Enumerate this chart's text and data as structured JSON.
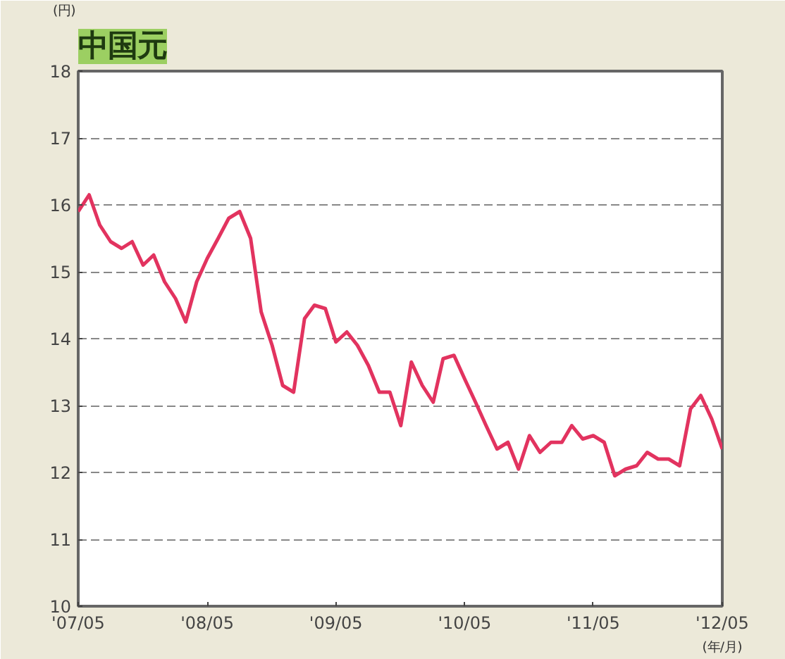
{
  "chart_data": {
    "type": "line",
    "title": "中国元",
    "ylabel": "(円)",
    "xlabel": "(年/月)",
    "x": [
      "2007-05",
      "2007-06",
      "2007-07",
      "2007-08",
      "2007-09",
      "2007-10",
      "2007-11",
      "2007-12",
      "2008-01",
      "2008-02",
      "2008-03",
      "2008-04",
      "2008-05",
      "2008-06",
      "2008-07",
      "2008-08",
      "2008-09",
      "2008-10",
      "2008-11",
      "2008-12",
      "2009-01",
      "2009-02",
      "2009-03",
      "2009-04",
      "2009-05",
      "2009-06",
      "2009-07",
      "2009-08",
      "2009-09",
      "2009-10",
      "2009-11",
      "2009-12",
      "2010-01",
      "2010-02",
      "2010-03",
      "2010-04",
      "2010-05",
      "2010-06",
      "2010-07",
      "2010-08",
      "2010-09",
      "2010-10",
      "2010-11",
      "2010-12",
      "2011-01",
      "2011-02",
      "2011-03",
      "2011-04",
      "2011-05",
      "2011-06",
      "2011-07",
      "2011-08",
      "2011-09",
      "2011-10",
      "2011-11",
      "2011-12",
      "2012-01",
      "2012-02",
      "2012-03",
      "2012-04",
      "2012-05"
    ],
    "series": [
      {
        "color": "#e2335f",
        "values": [
          15.9,
          16.15,
          15.7,
          15.45,
          15.35,
          15.45,
          15.1,
          15.25,
          14.85,
          14.6,
          14.25,
          14.85,
          15.2,
          15.5,
          15.8,
          15.9,
          15.5,
          14.4,
          13.9,
          13.3,
          13.2,
          14.3,
          14.5,
          14.45,
          13.95,
          14.1,
          13.9,
          13.6,
          13.2,
          13.2,
          12.7,
          13.65,
          13.3,
          13.05,
          13.7,
          13.75,
          13.4,
          13.05,
          12.7,
          12.35,
          12.45,
          12.05,
          12.55,
          12.3,
          12.45,
          12.45,
          12.7,
          12.5,
          12.55,
          12.45,
          11.95,
          12.05,
          12.1,
          12.3,
          12.2,
          12.2,
          12.1,
          12.95,
          13.15,
          12.8,
          12.35
        ]
      }
    ],
    "xlim": [
      "2007-05",
      "2012-05"
    ],
    "xticks": [
      {
        "value": "2007-05",
        "label": "'07/05"
      },
      {
        "value": "2008-05",
        "label": "'08/05"
      },
      {
        "value": "2009-05",
        "label": "'09/05"
      },
      {
        "value": "2010-05",
        "label": "'10/05"
      },
      {
        "value": "2011-05",
        "label": "'11/05"
      },
      {
        "value": "2012-05",
        "label": "'12/05"
      }
    ],
    "ylim": [
      10,
      18
    ],
    "yticks": [
      10,
      11,
      12,
      13,
      14,
      15,
      16,
      17,
      18
    ],
    "grid": "y",
    "line_style": "solid",
    "marker": "none"
  }
}
